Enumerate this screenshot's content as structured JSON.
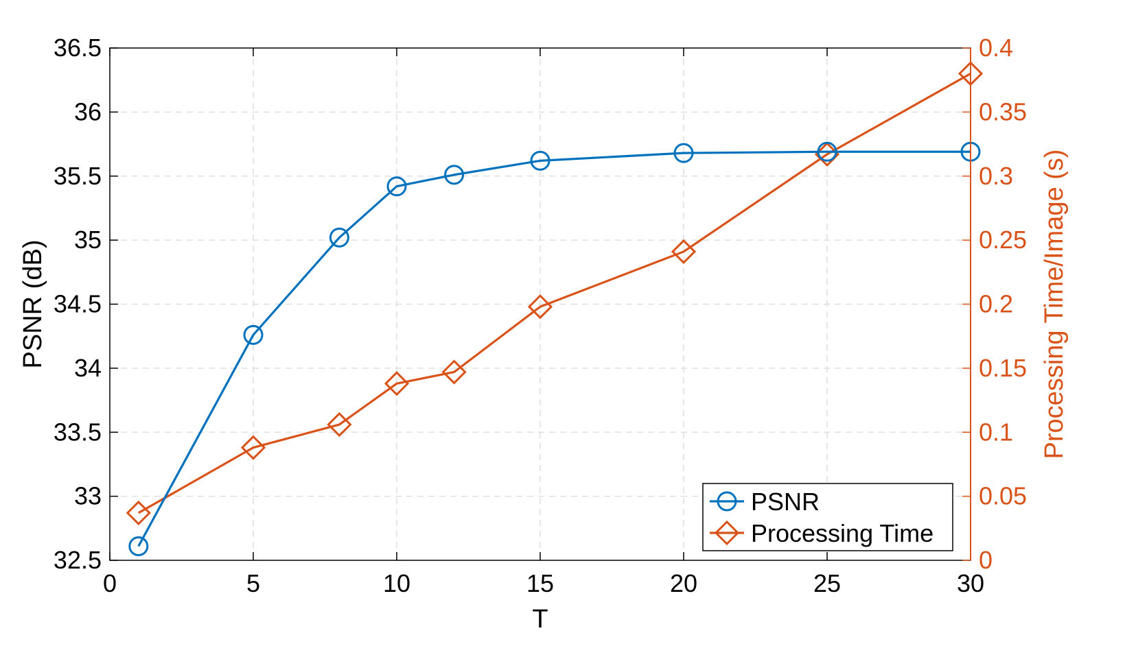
{
  "chart_data": {
    "type": "line",
    "xlabel": "T",
    "ylabel_left": "PSNR (dB)",
    "ylabel_right": "Processing Time/Image (s)",
    "xlim": [
      0,
      30
    ],
    "ylim_left": [
      32.5,
      36.5
    ],
    "ylim_right": [
      0,
      0.4
    ],
    "x_ticks": [
      "0",
      "5",
      "10",
      "15",
      "20",
      "25",
      "30"
    ],
    "y_left_ticks": [
      "32.5",
      "33",
      "33.5",
      "34",
      "34.5",
      "35",
      "35.5",
      "36",
      "36.5"
    ],
    "y_right_ticks": [
      "0",
      "0.05",
      "0.1",
      "0.15",
      "0.2",
      "0.25",
      "0.3",
      "0.35",
      "0.4"
    ],
    "grid": true,
    "legend_position": "bottom-right",
    "x": [
      1,
      5,
      8,
      10,
      12,
      15,
      20,
      25,
      30
    ],
    "series": [
      {
        "name": "PSNR",
        "axis": "left",
        "marker": "circle",
        "color": "#1f77b4",
        "values": [
          32.61,
          34.26,
          35.02,
          35.42,
          35.51,
          35.62,
          35.68,
          35.69,
          35.69
        ]
      },
      {
        "name": "Processing Time",
        "axis": "right",
        "marker": "diamond",
        "color": "#d95319",
        "values": [
          0.037,
          0.088,
          0.106,
          0.138,
          0.147,
          0.198,
          0.241,
          0.317,
          0.38
        ]
      }
    ]
  },
  "colors": {
    "psnr": "#0072bd",
    "time": "#d95319",
    "grid": "#d9d9d9",
    "axis": "#000000"
  }
}
